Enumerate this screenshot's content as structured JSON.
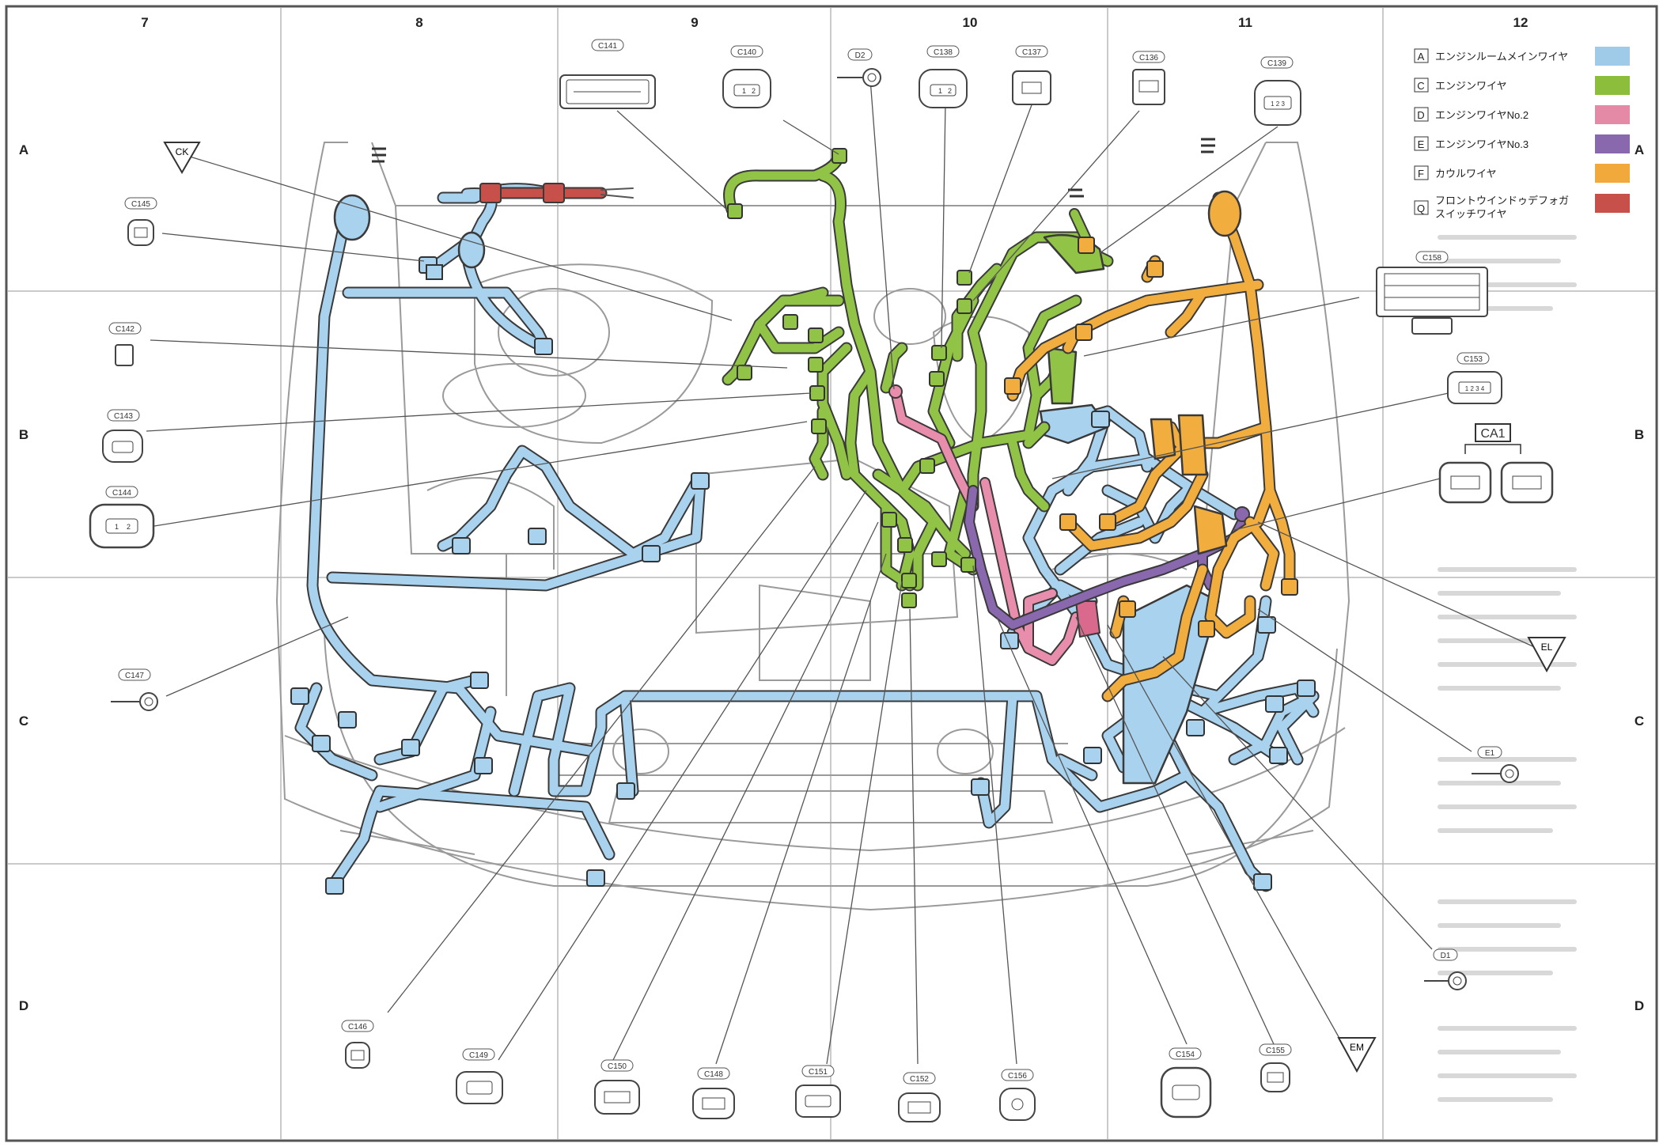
{
  "columns": [
    "7",
    "8",
    "9",
    "10",
    "11",
    "12"
  ],
  "rows": [
    "A",
    "B",
    "C",
    "D"
  ],
  "legend": [
    {
      "code": "A",
      "label": "エンジンルームメインワイヤ",
      "color": "#9fcbe8"
    },
    {
      "code": "C",
      "label": "エンジンワイヤ",
      "color": "#8cbd3b"
    },
    {
      "code": "D",
      "label": "エンジンワイヤNo.2",
      "color": "#e58aa6"
    },
    {
      "code": "E",
      "label": "エンジンワイヤNo.3",
      "color": "#8a68ad"
    },
    {
      "code": "F",
      "label": "カウルワイヤ",
      "color": "#f2a93b"
    },
    {
      "code": "Q",
      "label1": "フロントウインドゥデフォガ",
      "label2": "スイッチワイヤ",
      "color": "#c8504a"
    }
  ],
  "connectors": {
    "C141": "C141",
    "C140": "C140",
    "D2": "D2",
    "C138": "C138",
    "C137": "C137",
    "C136": "C136",
    "C139": "C139",
    "C145": "C145",
    "C142": "C142",
    "C143": "C143",
    "C144": "C144",
    "C147": "C147",
    "C158": "C158",
    "C153": "C153",
    "CA1": "CA1",
    "E1": "E1",
    "D1": "D1",
    "C146": "C146",
    "C149": "C149",
    "C150": "C150",
    "C148": "C148",
    "C151": "C151",
    "C152": "C152",
    "C156": "C156",
    "C154": "C154",
    "C155": "C155"
  },
  "markers": {
    "CK": "CK",
    "EL": "EL",
    "EM": "EM"
  },
  "pins": {
    "p1": "1",
    "p2": "2",
    "p123": "1 2 3",
    "p1234": "1 2 3 4"
  }
}
